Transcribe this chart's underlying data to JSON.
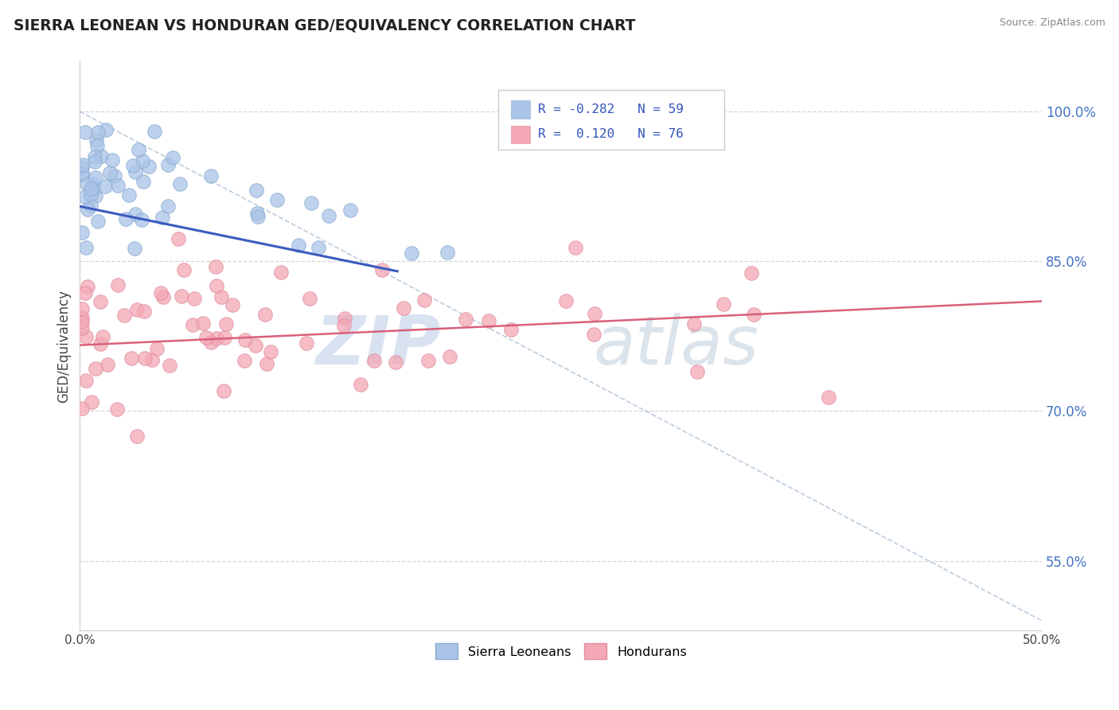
{
  "title": "SIERRA LEONEAN VS HONDURAN GED/EQUIVALENCY CORRELATION CHART",
  "source": "Source: ZipAtlas.com",
  "ylabel": "GED/Equivalency",
  "xlim": [
    0.0,
    0.5
  ],
  "ylim": [
    0.48,
    1.05
  ],
  "xtick_positions": [
    0.0,
    0.5
  ],
  "xticklabels": [
    "0.0%",
    "50.0%"
  ],
  "ytick_positions": [
    0.55,
    0.7,
    0.85,
    1.0
  ],
  "ytick_labels": [
    "55.0%",
    "70.0%",
    "85.0%",
    "100.0%"
  ],
  "grid_yticks": [
    0.55,
    0.7,
    0.85,
    1.0
  ],
  "background_color": "#ffffff",
  "grid_color": "#cccccc",
  "sierra_color": "#aac4e8",
  "sierra_edge": "#8aadd0",
  "honduran_color": "#f4a7b5",
  "honduran_edge": "#e090a0",
  "sierra_line_color": "#3a5bbf",
  "honduran_line_color": "#d9607a",
  "dashed_line_color": "#a0b8d0",
  "legend_R_sierra": "-0.282",
  "legend_N_sierra": "59",
  "legend_R_honduran": "0.120",
  "legend_N_honduran": "76",
  "watermark_zip_color": "#c0d0e8",
  "watermark_atlas_color": "#b8c8d8",
  "sierra_line_x": [
    0.0,
    0.165
  ],
  "sierra_line_y": [
    0.905,
    0.84
  ],
  "honduran_line_x": [
    0.0,
    0.5
  ],
  "honduran_line_y": [
    0.766,
    0.81
  ],
  "dashed_line_x": [
    0.0,
    0.5
  ],
  "dashed_line_y": [
    1.0,
    0.49
  ]
}
